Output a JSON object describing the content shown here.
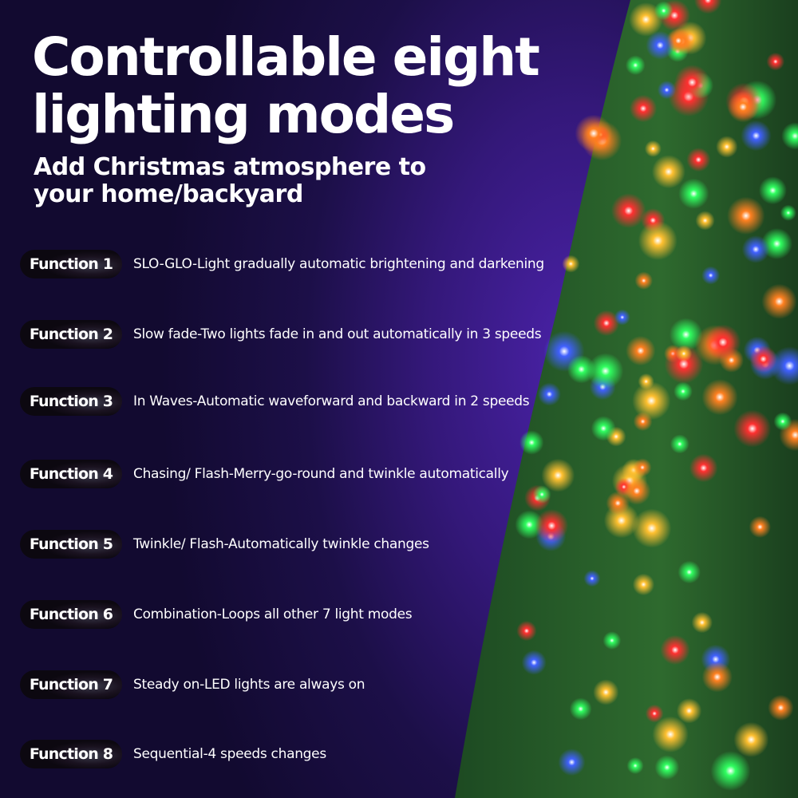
{
  "title_lines": [
    "Controllable eight",
    "lighting modes"
  ],
  "subtitle_lines": [
    "Add Christmas atmosphere to",
    "your home/backyard"
  ],
  "functions": [
    {
      "label": "Function 1",
      "description": "SLO-GLO-Light gradually automatic brightening and darkening"
    },
    {
      "label": "Function 2",
      "description": "Slow fade-Two lights fade in and out automatically in 3 speeds"
    },
    {
      "label": "Function 3",
      "description": "In Waves-Automatic waveforward and backward in 2 speeds"
    },
    {
      "label": "Function 4",
      "description": "Chasing/ Flash-Merry-go-round and twinkle automatically"
    },
    {
      "label": "Function 5",
      "description": "Twinkle/ Flash-Automatically twinkle changes"
    },
    {
      "label": "Function 6",
      "description": "Combination-Loops all other 7 light modes"
    },
    {
      "label": "Function 7",
      "description": "Steady on-LED lights are always on"
    },
    {
      "label": "Function 8",
      "description": "Sequential-4 speeds changes"
    }
  ],
  "colors": {
    "background": "#1c0f48",
    "accent": "#4a22a8",
    "light_colors": [
      "#ff3030",
      "#30ff60",
      "#4060ff",
      "#ffc030",
      "#ff8020"
    ]
  }
}
